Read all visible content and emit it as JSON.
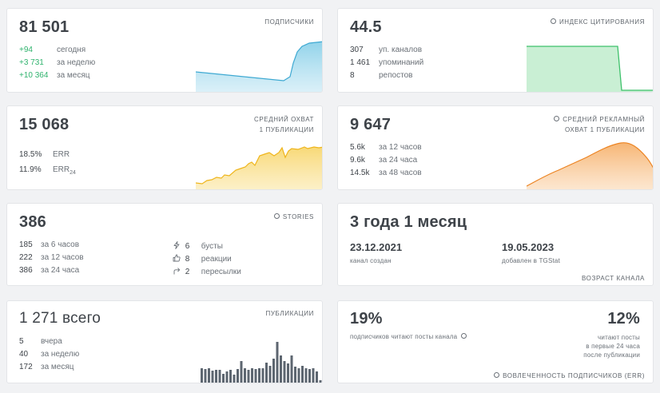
{
  "subscribers": {
    "label": "ПОДПИСЧИКИ",
    "value": "81 501",
    "rows": [
      {
        "value": "+94",
        "label": "сегодня"
      },
      {
        "value": "+3 731",
        "label": "за неделю"
      },
      {
        "value": "+10 364",
        "label": "за месяц"
      }
    ]
  },
  "citation": {
    "label": "ИНДЕКС ЦИТИРОВАНИЯ",
    "value": "44.5",
    "rows": [
      {
        "value": "307",
        "label": "уп. каналов"
      },
      {
        "value": "1 461",
        "label": "упоминаний"
      },
      {
        "value": "8",
        "label": "репостов"
      }
    ]
  },
  "reach": {
    "label_line1": "СРЕДНИЙ ОХВАТ",
    "label_line2": "1 ПУБЛИКАЦИИ",
    "value": "15 068",
    "err_value": "18.5%",
    "err_label": "ERR",
    "err24_value": "11.9%",
    "err24_label": "ERR",
    "err24_sub": "24"
  },
  "ad_reach": {
    "label_line1": "СРЕДНИЙ РЕКЛАМНЫЙ",
    "label_line2": "ОХВАТ 1 ПУБЛИКАЦИИ",
    "value": "9 647",
    "rows": [
      {
        "value": "5.6k",
        "label": "за 12 часов"
      },
      {
        "value": "9.6k",
        "label": "за 24 часа"
      },
      {
        "value": "14.5k",
        "label": "за 48 часов"
      }
    ]
  },
  "stories": {
    "label": "STORIES",
    "value": "386",
    "left_rows": [
      {
        "value": "185",
        "label": "за 6 часов"
      },
      {
        "value": "222",
        "label": "за 12 часов"
      },
      {
        "value": "386",
        "label": "за 24 часа"
      }
    ],
    "right_rows": [
      {
        "icon": "lightning-icon",
        "value": "6",
        "label": "бусты"
      },
      {
        "icon": "thumbs-up-icon",
        "value": "8",
        "label": "реакции"
      },
      {
        "icon": "share-arrow-icon",
        "value": "2",
        "label": "пересылки"
      }
    ]
  },
  "age": {
    "value": "3 года 1 месяц",
    "created_date": "23.12.2021",
    "created_label": "канал создан",
    "added_date": "19.05.2023",
    "added_label": "добавлен в TGStat",
    "footer": "ВОЗРАСТ КАНАЛА"
  },
  "posts": {
    "label": "ПУБЛИКАЦИИ",
    "value": "1 271 всего",
    "rows": [
      {
        "value": "5",
        "label": "вчера"
      },
      {
        "value": "40",
        "label": "за неделю"
      },
      {
        "value": "172",
        "label": "за месяц"
      }
    ]
  },
  "engagement": {
    "left_value": "19%",
    "left_label": "подписчиков читают посты канала",
    "right_value": "12%",
    "right_line1": "читают посты",
    "right_line2": "в первые 24 часа",
    "right_line3": "после публикации",
    "footer": "ВОВЛЕЧЕННОСТЬ ПОДПИСЧИКОВ (ERR)"
  },
  "colors": {
    "blue": "#4bb3d8",
    "green": "#3dc16a",
    "yellow": "#f2c02e",
    "orange": "#f08a2a",
    "bars": "#5d6670",
    "positive": "#2fb36d"
  }
}
